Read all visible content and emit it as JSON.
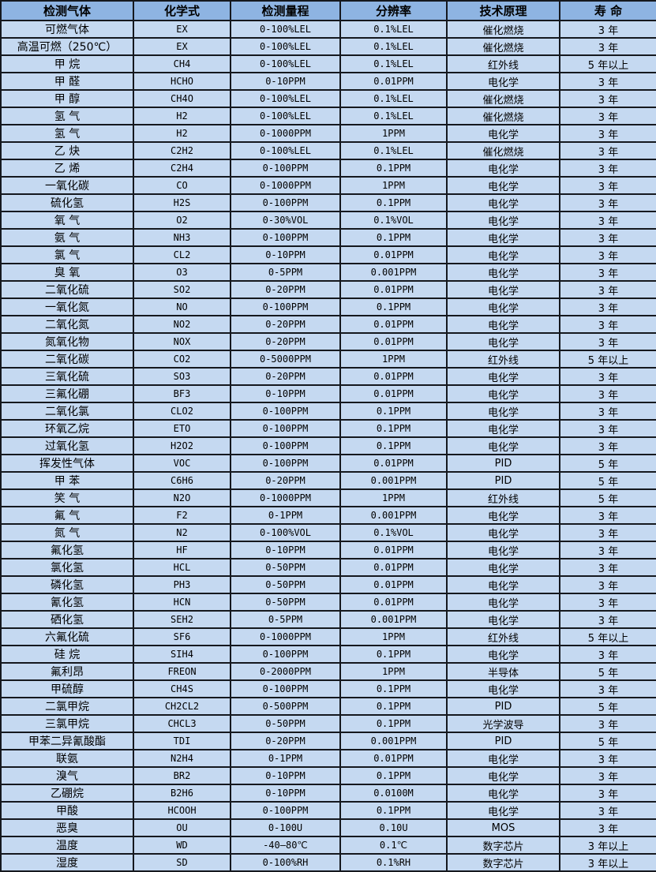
{
  "colors": {
    "header_bg": "#8eb4e2",
    "row_bg": "#c5d9f1",
    "border": "#15181e",
    "text": "#000000"
  },
  "table": {
    "headers": [
      "检测气体",
      "化学式",
      "检测量程",
      "分辨率",
      "技术原理",
      "寿 命"
    ],
    "column_keys": [
      "gas",
      "formula",
      "range",
      "res",
      "tech",
      "life"
    ],
    "rows": [
      [
        "可燃气体",
        "EX",
        "0-100%LEL",
        "0.1%LEL",
        "催化燃烧",
        "3 年"
      ],
      [
        "高温可燃（250℃）",
        "EX",
        "0-100%LEL",
        "0.1%LEL",
        "催化燃烧",
        "3 年"
      ],
      [
        "甲 烷",
        "CH4",
        "0-100%LEL",
        "0.1%LEL",
        "红外线",
        "5 年以上"
      ],
      [
        "甲 醛",
        "HCHO",
        "0-10PPM",
        "0.01PPM",
        "电化学",
        "3 年"
      ],
      [
        "甲 醇",
        "CH4O",
        "0-100%LEL",
        "0.1%LEL",
        "催化燃烧",
        "3 年"
      ],
      [
        "氢 气",
        "H2",
        "0-100%LEL",
        "0.1%LEL",
        "催化燃烧",
        "3 年"
      ],
      [
        "氢 气",
        "H2",
        "0-1000PPM",
        "1PPM",
        "电化学",
        "3 年"
      ],
      [
        "乙 炔",
        "C2H2",
        "0-100%LEL",
        "0.1%LEL",
        "催化燃烧",
        "3 年"
      ],
      [
        "乙 烯",
        "C2H4",
        "0-100PPM",
        "0.1PPM",
        "电化学",
        "3 年"
      ],
      [
        "一氧化碳",
        "CO",
        "0-1000PPM",
        "1PPM",
        "电化学",
        "3 年"
      ],
      [
        "硫化氢",
        "H2S",
        "0-100PPM",
        "0.1PPM",
        "电化学",
        "3 年"
      ],
      [
        "氧 气",
        "O2",
        "0-30%VOL",
        "0.1%VOL",
        "电化学",
        "3 年"
      ],
      [
        "氨 气",
        "NH3",
        "0-100PPM",
        "0.1PPM",
        "电化学",
        "3 年"
      ],
      [
        "氯 气",
        "CL2",
        "0-10PPM",
        "0.01PPM",
        "电化学",
        "3 年"
      ],
      [
        "臭 氧",
        "O3",
        "0-5PPM",
        "0.001PPM",
        "电化学",
        "3 年"
      ],
      [
        "二氧化硫",
        "SO2",
        "0-20PPM",
        "0.01PPM",
        "电化学",
        "3 年"
      ],
      [
        "一氧化氮",
        "NO",
        "0-100PPM",
        "0.1PPM",
        "电化学",
        "3 年"
      ],
      [
        "二氧化氮",
        "NO2",
        "0-20PPM",
        "0.01PPM",
        "电化学",
        "3 年"
      ],
      [
        "氮氧化物",
        "NOX",
        "0-20PPM",
        "0.01PPM",
        "电化学",
        "3 年"
      ],
      [
        "二氧化碳",
        "CO2",
        "0-5000PPM",
        "1PPM",
        "红外线",
        "5 年以上"
      ],
      [
        "三氧化硫",
        "SO3",
        "0-20PPM",
        "0.01PPM",
        "电化学",
        "3 年"
      ],
      [
        "三氟化硼",
        "BF3",
        "0-10PPM",
        "0.01PPM",
        "电化学",
        "3 年"
      ],
      [
        "二氧化氯",
        "CLO2",
        "0-100PPM",
        "0.1PPM",
        "电化学",
        "3 年"
      ],
      [
        "环氧乙烷",
        "ETO",
        "0-100PPM",
        "0.1PPM",
        "电化学",
        "3 年"
      ],
      [
        "过氧化氢",
        "H2O2",
        "0-100PPM",
        "0.1PPM",
        "电化学",
        "3 年"
      ],
      [
        "挥发性气体",
        "VOC",
        "0-100PPM",
        "0.01PPM",
        "PID",
        "5 年"
      ],
      [
        "甲 苯",
        "C6H6",
        "0-20PPM",
        "0.001PPM",
        "PID",
        "5 年"
      ],
      [
        "笑 气",
        "N2O",
        "0-1000PPM",
        "1PPM",
        "红外线",
        "5 年"
      ],
      [
        "氟 气",
        "F2",
        "0-1PPM",
        "0.001PPM",
        "电化学",
        "3 年"
      ],
      [
        "氮 气",
        "N2",
        "0-100%VOL",
        "0.1%VOL",
        "电化学",
        "3 年"
      ],
      [
        "氟化氢",
        "HF",
        "0-10PPM",
        "0.01PPM",
        "电化学",
        "3 年"
      ],
      [
        "氯化氢",
        "HCL",
        "0-50PPM",
        "0.01PPM",
        "电化学",
        "3 年"
      ],
      [
        "磷化氢",
        "PH3",
        "0-50PPM",
        "0.01PPM",
        "电化学",
        "3 年"
      ],
      [
        "氰化氢",
        "HCN",
        "0-50PPM",
        "0.01PPM",
        "电化学",
        "3 年"
      ],
      [
        "硒化氢",
        "SEH2",
        "0-5PPM",
        "0.001PPM",
        "电化学",
        "3 年"
      ],
      [
        "六氟化硫",
        "SF6",
        "0-1000PPM",
        "1PPM",
        "红外线",
        "5 年以上"
      ],
      [
        "硅 烷",
        "SIH4",
        "0-100PPM",
        "0.1PPM",
        "电化学",
        "3 年"
      ],
      [
        "氟利昂",
        "FREON",
        "0-2000PPM",
        "1PPM",
        "半导体",
        "5 年"
      ],
      [
        "甲硫醇",
        "CH4S",
        "0-100PPM",
        "0.1PPM",
        "电化学",
        "3 年"
      ],
      [
        "二氯甲烷",
        "CH2CL2",
        "0-500PPM",
        "0.1PPM",
        "PID",
        "5 年"
      ],
      [
        "三氯甲烷",
        "CHCL3",
        "0-50PPM",
        "0.1PPM",
        "光学波导",
        "3 年"
      ],
      [
        "甲苯二异氰酸酯",
        "TDI",
        "0-20PPM",
        "0.001PPM",
        "PID",
        "5 年"
      ],
      [
        "联氨",
        "N2H4",
        "0-1PPM",
        "0.01PPM",
        "电化学",
        "3 年"
      ],
      [
        "溴气",
        "BR2",
        "0-10PPM",
        "0.1PPM",
        "电化学",
        "3 年"
      ],
      [
        "乙硼烷",
        "B2H6",
        "0-10PPM",
        "0.0100M",
        "电化学",
        "3 年"
      ],
      [
        "甲酸",
        "HCOOH",
        "0-100PPM",
        "0.1PPM",
        "电化学",
        "3 年"
      ],
      [
        "恶臭",
        "OU",
        "0-100U",
        "0.10U",
        "MOS",
        "3 年"
      ],
      [
        "温度",
        "WD",
        "-40—80℃",
        "0.1℃",
        "数字芯片",
        "3 年以上"
      ],
      [
        "湿度",
        "SD",
        "0-100%RH",
        "0.1%RH",
        "数字芯片",
        "3 年以上"
      ]
    ]
  }
}
